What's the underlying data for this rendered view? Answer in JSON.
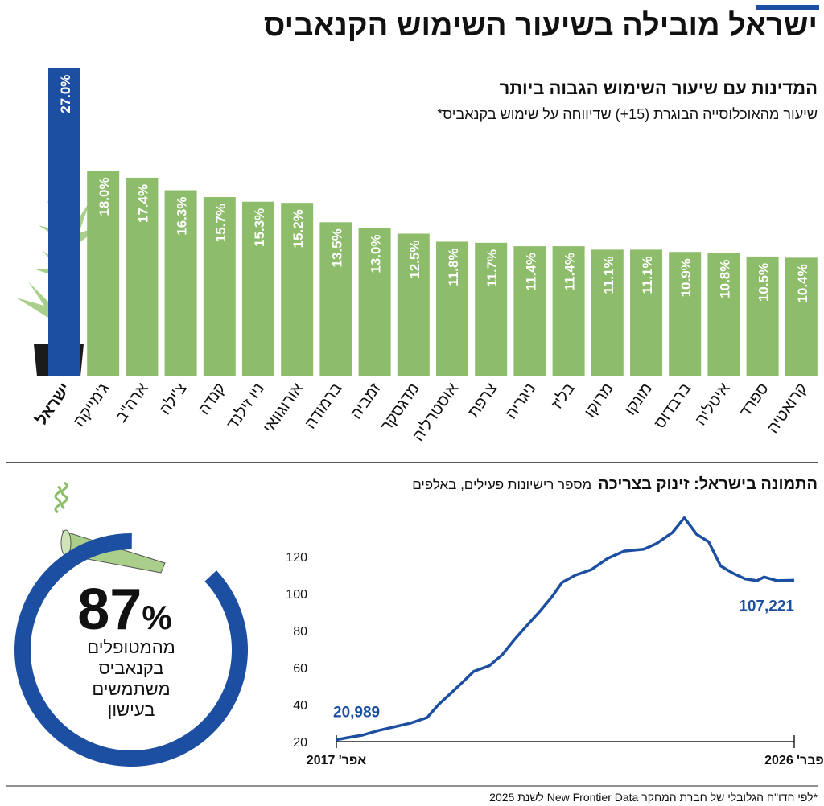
{
  "header": {
    "title": "ישראל מובילה בשיעור השימוש הקנאביס"
  },
  "chart_data": [
    {
      "type": "bar",
      "title": "המדינות עם שיעור השימוש הגבוה ביותר",
      "subtitle": "שיעור מהאוכלוסייה הבוגרת (15+) שדיווחה על שימוש בקנאביס*",
      "categories": [
        "ישראל",
        "ג'מייקה",
        "ארה\"ב",
        "צ'ילה",
        "קנדה",
        "ניו זילנד",
        "אורוגוואי",
        "ברמודה",
        "זמביה",
        "מדגסקר",
        "אוסטרליה",
        "צרפת",
        "ניגריה",
        "בליז",
        "מרוקו",
        "מונקו",
        "ברבדוס",
        "איטליה",
        "ספרד",
        "קרואטיה"
      ],
      "values": [
        27.0,
        18.0,
        17.4,
        16.3,
        15.7,
        15.3,
        15.2,
        13.5,
        13.0,
        12.5,
        11.8,
        11.7,
        11.4,
        11.4,
        11.1,
        11.1,
        10.9,
        10.8,
        10.5,
        10.4
      ],
      "value_labels": [
        "27.0%",
        "18.0%",
        "17.4%",
        "16.3%",
        "15.7%",
        "15.3%",
        "15.2%",
        "13.5%",
        "13.0%",
        "12.5%",
        "11.8%",
        "11.7%",
        "11.4%",
        "11.4%",
        "11.1%",
        "11.1%",
        "10.9%",
        "10.8%",
        "10.5%",
        "10.4%"
      ],
      "colors": [
        "#1c4fa1",
        "#8dbd6a",
        "#8dbd6a",
        "#8dbd6a",
        "#8dbd6a",
        "#8dbd6a",
        "#8dbd6a",
        "#8dbd6a",
        "#8dbd6a",
        "#8dbd6a",
        "#8dbd6a",
        "#8dbd6a",
        "#8dbd6a",
        "#8dbd6a",
        "#8dbd6a",
        "#8dbd6a",
        "#8dbd6a",
        "#8dbd6a",
        "#8dbd6a",
        "#8dbd6a"
      ]
    },
    {
      "type": "line",
      "title": "התמונה בישראל: זינוק בצריכה",
      "subtitle": "מספר רישיונות פעילים, באלפים",
      "color": "#1c4fa1",
      "x": [
        2017.25,
        2017.44,
        2017.75,
        2018.06,
        2018.37,
        2018.68,
        2019.0,
        2019.22,
        2019.45,
        2019.68,
        2019.9,
        2020.2,
        2020.45,
        2020.68,
        2020.9,
        2021.16,
        2021.4,
        2021.6,
        2021.86,
        2022.17,
        2022.48,
        2022.8,
        2023.18,
        2023.42,
        2023.73,
        2023.96,
        2024.2,
        2024.43,
        2024.66,
        2024.9,
        2025.13,
        2025.36,
        2025.5,
        2025.75,
        2026.08
      ],
      "values": [
        20.989,
        22,
        23.5,
        26,
        28,
        30,
        33,
        40,
        46,
        52,
        58,
        61,
        67,
        75,
        82,
        90,
        98,
        106,
        110,
        113,
        119,
        123,
        124,
        127,
        133,
        141,
        132,
        128,
        115,
        111,
        108,
        107,
        109,
        107,
        107.221
      ],
      "value_labels": [
        "20,989",
        null,
        null,
        null,
        null,
        null,
        null,
        null,
        null,
        null,
        null,
        null,
        null,
        null,
        null,
        null,
        null,
        null,
        null,
        null,
        null,
        null,
        null,
        null,
        null,
        null,
        null,
        null,
        null,
        null,
        null,
        null,
        null,
        null,
        "107,221"
      ],
      "xlim": [
        2017.25,
        2026.08
      ],
      "xticks": [
        {
          "value": 2017.25,
          "label": "אפר' 2017"
        },
        {
          "value": 2026.08,
          "label": "פבר' 2026"
        }
      ],
      "ylim": [
        20,
        142
      ],
      "yticks": [
        20,
        40,
        60,
        80,
        100,
        120
      ]
    }
  ],
  "stat": {
    "value": 87,
    "unit": "%",
    "caption": [
      "מהמטופלים",
      "בקנאביס",
      "משתמשים",
      "בעישון"
    ]
  },
  "footnote": "*לפי הדו\"ח הגלובלי של חברת המחקר New Frontier Data לשנת 2025"
}
